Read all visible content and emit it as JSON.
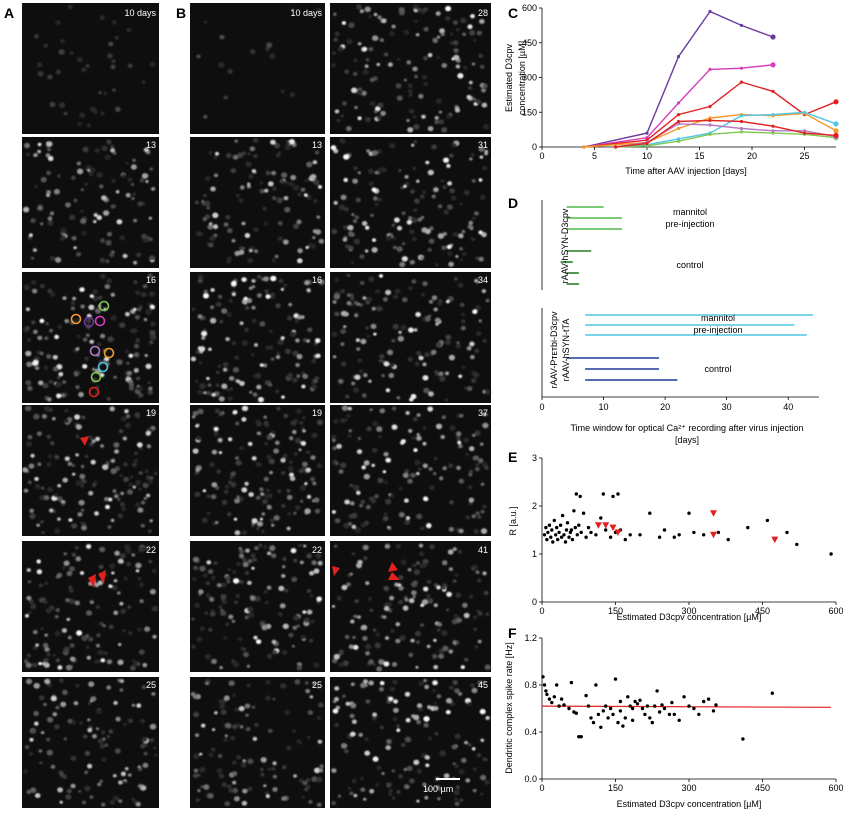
{
  "panel_labels": {
    "A": "A",
    "B": "B",
    "C": "C",
    "D": "D",
    "E": "E",
    "F": "F"
  },
  "panel_a_days": [
    "10 days",
    "13",
    "16",
    "19",
    "22",
    "25"
  ],
  "panel_b_left_days": [
    "10 days",
    "13",
    "16",
    "19",
    "22",
    "25"
  ],
  "panel_b_right_days": [
    "28",
    "31",
    "34",
    "37",
    "41",
    "45"
  ],
  "scale_bar": "100 µm",
  "colors": {
    "purple": "#6a3aa0",
    "magenta": "#d43fbf",
    "red": "#e32020",
    "orange": "#f39a2b",
    "cyan": "#4ec6e6",
    "green": "#7ec850",
    "violet": "#b27ac7",
    "darkgreen": "#2a7d2a",
    "lightgreen": "#50b848",
    "navy": "#1f3a9a",
    "lightblue": "#4ec6e6",
    "marker": "#e32020"
  },
  "chart_data": [
    {
      "id": "C",
      "type": "line",
      "ylabel": "Estimated D3cpv concentration [µM]",
      "ylabel_lines": [
        "Estimated D3cpv",
        "concentration [µM]"
      ],
      "xlabel": "Time after AAV injection [days]",
      "xlim": [
        0,
        28
      ],
      "ylim": [
        0,
        600
      ],
      "xticks": [
        0,
        5,
        10,
        15,
        20,
        25
      ],
      "yticks": [
        0,
        150,
        300,
        450,
        600
      ],
      "series": [
        {
          "name": "cell1",
          "color": "#6a3aa0",
          "x": [
            4,
            10,
            13,
            16,
            19,
            22
          ],
          "y": [
            0,
            60,
            390,
            585,
            525,
            475
          ]
        },
        {
          "name": "cell2",
          "color": "#d43fbf",
          "x": [
            4,
            10,
            13,
            16,
            19,
            22
          ],
          "y": [
            0,
            40,
            190,
            335,
            340,
            355
          ]
        },
        {
          "name": "cell3",
          "color": "#e32020",
          "x": [
            4,
            10,
            13,
            16,
            19,
            22,
            25,
            28
          ],
          "y": [
            0,
            30,
            140,
            175,
            280,
            240,
            140,
            195
          ]
        },
        {
          "name": "cell4",
          "color": "#f39a2b",
          "x": [
            4,
            10,
            13,
            16,
            19,
            22,
            25,
            28
          ],
          "y": [
            0,
            20,
            80,
            125,
            140,
            135,
            145,
            70
          ]
        },
        {
          "name": "cell5",
          "color": "#4ec6e6",
          "x": [
            7,
            10,
            13,
            16,
            19,
            22,
            25,
            28
          ],
          "y": [
            0,
            10,
            35,
            60,
            135,
            140,
            150,
            100
          ]
        },
        {
          "name": "cell6",
          "color": "#7ec850",
          "x": [
            7,
            10,
            13,
            16,
            19,
            22,
            25,
            28
          ],
          "y": [
            0,
            5,
            25,
            55,
            65,
            60,
            55,
            40
          ]
        },
        {
          "name": "cell7",
          "color": "#b27ac7",
          "x": [
            7,
            10,
            13,
            16,
            19,
            22,
            25,
            28
          ],
          "y": [
            0,
            20,
            100,
            95,
            80,
            70,
            70,
            45
          ]
        },
        {
          "name": "cell8",
          "color": "#e32020",
          "x": [
            7,
            10,
            13,
            16,
            19,
            22,
            25,
            28
          ],
          "y": [
            0,
            15,
            110,
            115,
            110,
            90,
            60,
            50
          ]
        }
      ]
    },
    {
      "id": "D",
      "type": "timeline",
      "xlabel_lines": [
        "Time window for optical Ca²⁺ recording after virus injection",
        "[days]"
      ],
      "xlim": [
        0,
        45
      ],
      "xticks": [
        0,
        10,
        20,
        30,
        40
      ],
      "group1_label": "rAAV-hSYN-D3cpv",
      "group2_label_lines": [
        "rAAV-Pᴛᴇᴛbi-D3cpv",
        "rAAV-hSYN-tTA"
      ],
      "mannitol": "mannitol",
      "pre_injection": "pre-injection",
      "control": "control",
      "group1_mannitol": [
        [
          4,
          10,
          "#50b848"
        ],
        [
          4,
          13,
          "#50b848"
        ],
        [
          4,
          13,
          "#50b848"
        ]
      ],
      "group1_control": [
        [
          4,
          8,
          "#2a7d2a"
        ],
        [
          3,
          5,
          "#2a7d2a"
        ],
        [
          4,
          6,
          "#2a7d2a"
        ],
        [
          4,
          6,
          "#2a7d2a"
        ]
      ],
      "group2_mannitol": [
        [
          7,
          44,
          "#4ec6e6"
        ],
        [
          7,
          41,
          "#4ec6e6"
        ],
        [
          7,
          43,
          "#4ec6e6"
        ]
      ],
      "group2_control": [
        [
          4,
          19,
          "#1f3a9a"
        ],
        [
          7,
          19,
          "#1f3a9a"
        ],
        [
          7,
          22,
          "#1f3a9a"
        ]
      ]
    },
    {
      "id": "E",
      "type": "scatter",
      "ylabel": "R [a.u.]",
      "xlabel": "Estimated D3cpv concentration [µM]",
      "xlim": [
        0,
        600
      ],
      "ylim": [
        0,
        3
      ],
      "xticks": [
        0,
        150,
        300,
        450,
        600
      ],
      "yticks": [
        0,
        1,
        2,
        3
      ],
      "points": [
        [
          5,
          1.4
        ],
        [
          8,
          1.55
        ],
        [
          10,
          1.3
        ],
        [
          12,
          1.45
        ],
        [
          15,
          1.6
        ],
        [
          18,
          1.35
        ],
        [
          20,
          1.5
        ],
        [
          22,
          1.25
        ],
        [
          25,
          1.7
        ],
        [
          28,
          1.4
        ],
        [
          30,
          1.55
        ],
        [
          32,
          1.3
        ],
        [
          35,
          1.45
        ],
        [
          38,
          1.6
        ],
        [
          40,
          1.35
        ],
        [
          42,
          1.8
        ],
        [
          45,
          1.4
        ],
        [
          48,
          1.25
        ],
        [
          50,
          1.5
        ],
        [
          52,
          1.65
        ],
        [
          55,
          1.35
        ],
        [
          58,
          1.45
        ],
        [
          60,
          1.5
        ],
        [
          62,
          1.3
        ],
        [
          65,
          1.9
        ],
        [
          68,
          1.55
        ],
        [
          70,
          2.25
        ],
        [
          72,
          1.4
        ],
        [
          75,
          1.6
        ],
        [
          78,
          2.2
        ],
        [
          80,
          1.45
        ],
        [
          85,
          1.85
        ],
        [
          90,
          1.35
        ],
        [
          95,
          1.55
        ],
        [
          100,
          1.45
        ],
        [
          110,
          1.4
        ],
        [
          120,
          1.75
        ],
        [
          125,
          2.25
        ],
        [
          130,
          1.5
        ],
        [
          140,
          1.35
        ],
        [
          145,
          2.2
        ],
        [
          150,
          1.45
        ],
        [
          155,
          2.25
        ],
        [
          160,
          1.5
        ],
        [
          170,
          1.3
        ],
        [
          180,
          1.4
        ],
        [
          200,
          1.4
        ],
        [
          220,
          1.85
        ],
        [
          250,
          1.5
        ],
        [
          270,
          1.35
        ],
        [
          280,
          1.4
        ],
        [
          300,
          1.85
        ],
        [
          310,
          1.45
        ],
        [
          330,
          1.4
        ],
        [
          360,
          1.45
        ],
        [
          380,
          1.3
        ],
        [
          420,
          1.55
        ],
        [
          460,
          1.7
        ],
        [
          520,
          1.2
        ],
        [
          590,
          1.0
        ],
        [
          500,
          1.45
        ],
        [
          240,
          1.35
        ]
      ],
      "triangles": [
        [
          115,
          1.6
        ],
        [
          130,
          1.6
        ],
        [
          155,
          1.45
        ],
        [
          350,
          1.85
        ],
        [
          350,
          1.4
        ],
        [
          475,
          1.3
        ],
        [
          145,
          1.55
        ]
      ]
    },
    {
      "id": "F",
      "type": "scatter",
      "ylabel": "Dendritic complex spike rate [Hz]",
      "xlabel": "Estimated D3cpv concentration [µM]",
      "xlim": [
        0,
        600
      ],
      "ylim": [
        0,
        1.2
      ],
      "xticks": [
        0,
        150,
        300,
        450,
        600
      ],
      "yticks": [
        0.0,
        0.4,
        0.8,
        1.2
      ],
      "yticklabels": [
        "0.0",
        "0.4",
        "0.8",
        "1.2"
      ],
      "fit_line": [
        [
          0,
          0.62
        ],
        [
          590,
          0.61
        ]
      ],
      "points": [
        [
          2,
          0.87
        ],
        [
          5,
          0.8
        ],
        [
          8,
          0.75
        ],
        [
          10,
          0.72
        ],
        [
          15,
          0.68
        ],
        [
          20,
          0.65
        ],
        [
          25,
          0.7
        ],
        [
          30,
          0.8
        ],
        [
          35,
          0.62
        ],
        [
          40,
          0.68
        ],
        [
          45,
          0.63
        ],
        [
          55,
          0.6
        ],
        [
          60,
          0.82
        ],
        [
          65,
          0.57
        ],
        [
          70,
          0.56
        ],
        [
          75,
          0.36
        ],
        [
          80,
          0.36
        ],
        [
          90,
          0.71
        ],
        [
          95,
          0.62
        ],
        [
          100,
          0.52
        ],
        [
          105,
          0.48
        ],
        [
          110,
          0.8
        ],
        [
          115,
          0.55
        ],
        [
          120,
          0.44
        ],
        [
          125,
          0.58
        ],
        [
          130,
          0.62
        ],
        [
          135,
          0.52
        ],
        [
          140,
          0.6
        ],
        [
          145,
          0.55
        ],
        [
          150,
          0.85
        ],
        [
          155,
          0.48
        ],
        [
          160,
          0.58
        ],
        [
          165,
          0.45
        ],
        [
          170,
          0.52
        ],
        [
          175,
          0.7
        ],
        [
          180,
          0.62
        ],
        [
          185,
          0.5
        ],
        [
          190,
          0.66
        ],
        [
          195,
          0.64
        ],
        [
          200,
          0.67
        ],
        [
          205,
          0.6
        ],
        [
          210,
          0.55
        ],
        [
          215,
          0.62
        ],
        [
          220,
          0.52
        ],
        [
          225,
          0.48
        ],
        [
          230,
          0.62
        ],
        [
          235,
          0.75
        ],
        [
          240,
          0.57
        ],
        [
          245,
          0.63
        ],
        [
          250,
          0.6
        ],
        [
          260,
          0.55
        ],
        [
          270,
          0.55
        ],
        [
          280,
          0.5
        ],
        [
          290,
          0.7
        ],
        [
          300,
          0.62
        ],
        [
          310,
          0.6
        ],
        [
          320,
          0.55
        ],
        [
          330,
          0.66
        ],
        [
          340,
          0.68
        ],
        [
          350,
          0.58
        ],
        [
          355,
          0.63
        ],
        [
          410,
          0.34
        ],
        [
          470,
          0.73
        ],
        [
          185,
          0.6
        ],
        [
          160,
          0.66
        ],
        [
          265,
          0.65
        ]
      ]
    }
  ]
}
